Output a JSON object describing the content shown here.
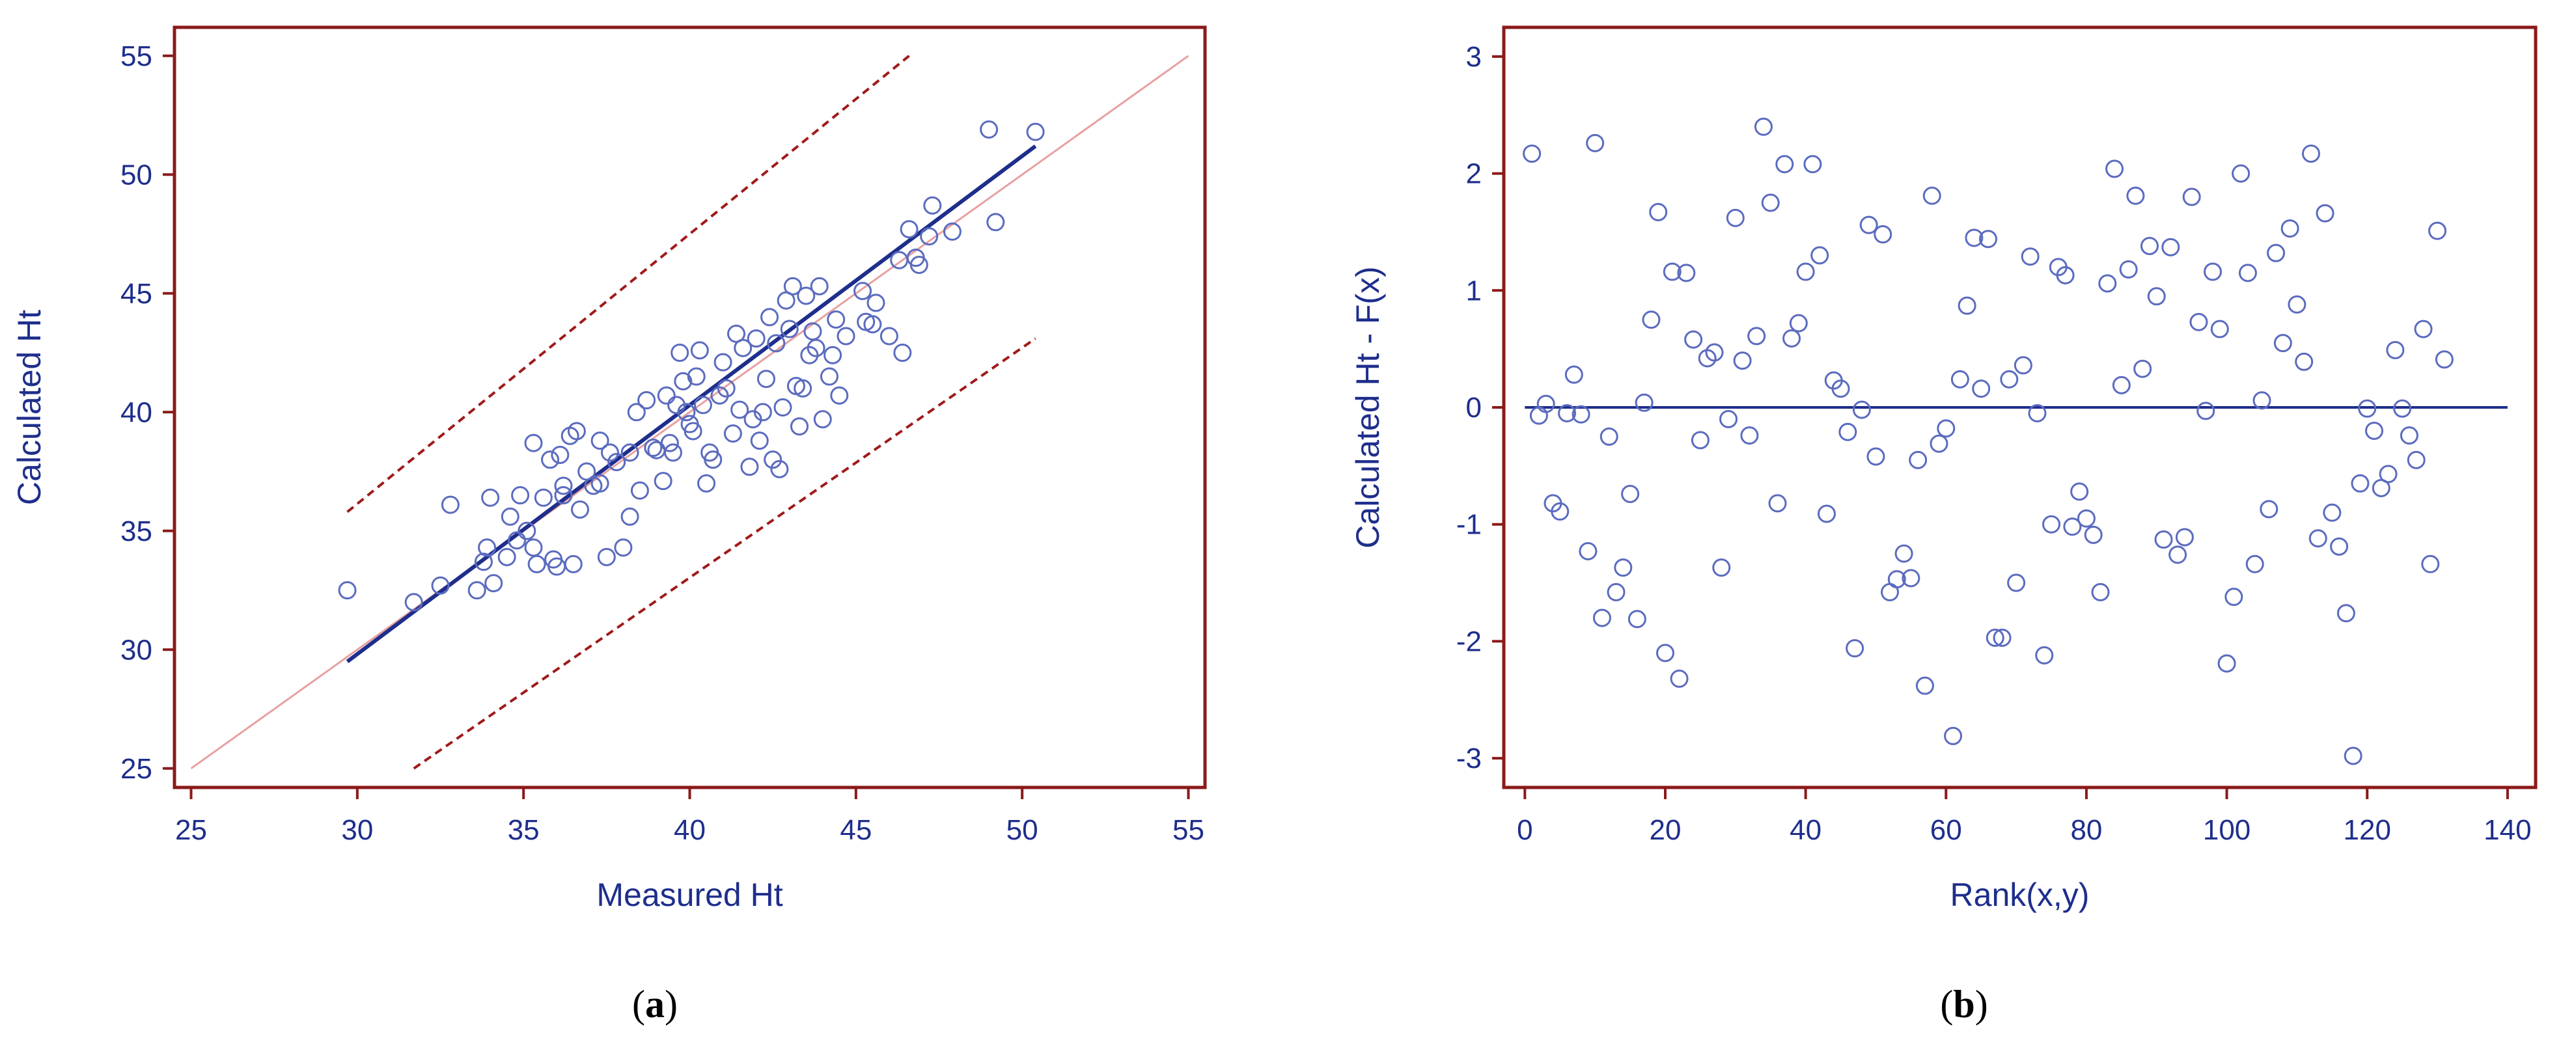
{
  "chart_data": [
    {
      "id": "a",
      "type": "scatter",
      "panel_label": "a",
      "title": "",
      "xlabel": "Measured Ht",
      "ylabel": "Calculated Ht",
      "xlim": [
        24.5,
        55.5
      ],
      "ylim": [
        24.2,
        56.2
      ],
      "xticks": [
        25,
        30,
        35,
        40,
        45,
        50,
        55
      ],
      "yticks": [
        25,
        30,
        35,
        40,
        45,
        50,
        55
      ],
      "colors": {
        "points": "#5b6bbf",
        "fit": "#1e2e8c",
        "identity": "#e8a0a0",
        "bounds": "#a01a1a",
        "frame": "#8b1a1a",
        "text": "#1e2e8c"
      },
      "lines": [
        {
          "role": "identity",
          "style": "solid",
          "x": [
            25,
            55
          ],
          "y": [
            25,
            55
          ]
        },
        {
          "role": "fit",
          "style": "solid",
          "x": [
            29.7,
            50.4
          ],
          "y": [
            29.5,
            51.2
          ]
        },
        {
          "role": "upper-bound",
          "style": "dashed",
          "x": [
            29.7,
            46.6
          ],
          "y": [
            35.8,
            55.0
          ]
        },
        {
          "role": "lower-bound",
          "style": "dashed",
          "x": [
            31.7,
            50.4
          ],
          "y": [
            25.0,
            43.1
          ]
        }
      ],
      "points": [
        [
          29.7,
          32.5
        ],
        [
          31.7,
          32.0
        ],
        [
          32.5,
          32.7
        ],
        [
          32.8,
          36.1
        ],
        [
          33.6,
          32.5
        ],
        [
          33.8,
          33.7
        ],
        [
          33.9,
          34.3
        ],
        [
          34.0,
          36.4
        ],
        [
          34.1,
          32.8
        ],
        [
          34.6,
          35.6
        ],
        [
          34.5,
          33.9
        ],
        [
          34.8,
          34.6
        ],
        [
          34.9,
          36.5
        ],
        [
          35.1,
          35.0
        ],
        [
          35.3,
          34.3
        ],
        [
          35.4,
          33.6
        ],
        [
          35.3,
          38.7
        ],
        [
          35.6,
          36.4
        ],
        [
          35.8,
          38.0
        ],
        [
          35.9,
          33.8
        ],
        [
          36.0,
          33.5
        ],
        [
          36.1,
          38.2
        ],
        [
          36.2,
          36.9
        ],
        [
          36.2,
          36.5
        ],
        [
          36.4,
          39.0
        ],
        [
          36.5,
          33.6
        ],
        [
          36.6,
          39.2
        ],
        [
          36.7,
          35.9
        ],
        [
          36.9,
          37.5
        ],
        [
          37.1,
          36.9
        ],
        [
          37.3,
          37.0
        ],
        [
          37.3,
          38.8
        ],
        [
          37.5,
          33.9
        ],
        [
          37.6,
          38.3
        ],
        [
          37.8,
          37.9
        ],
        [
          38.0,
          34.3
        ],
        [
          38.2,
          35.6
        ],
        [
          38.2,
          38.3
        ],
        [
          38.4,
          40.0
        ],
        [
          38.5,
          36.7
        ],
        [
          38.7,
          40.5
        ],
        [
          38.9,
          38.5
        ],
        [
          39.0,
          38.4
        ],
        [
          39.2,
          37.1
        ],
        [
          39.3,
          40.7
        ],
        [
          39.4,
          38.7
        ],
        [
          39.5,
          38.3
        ],
        [
          39.6,
          40.3
        ],
        [
          39.7,
          42.5
        ],
        [
          39.8,
          41.3
        ],
        [
          39.9,
          40.0
        ],
        [
          40.0,
          39.5
        ],
        [
          40.1,
          39.2
        ],
        [
          40.2,
          41.5
        ],
        [
          40.3,
          42.6
        ],
        [
          40.4,
          40.3
        ],
        [
          40.5,
          37.0
        ],
        [
          40.6,
          38.3
        ],
        [
          40.7,
          38.0
        ],
        [
          40.9,
          40.7
        ],
        [
          41.0,
          42.1
        ],
        [
          41.1,
          41.0
        ],
        [
          41.3,
          39.1
        ],
        [
          41.4,
          43.3
        ],
        [
          41.5,
          40.1
        ],
        [
          41.6,
          42.7
        ],
        [
          41.8,
          37.7
        ],
        [
          41.9,
          39.7
        ],
        [
          42.0,
          43.1
        ],
        [
          42.1,
          38.8
        ],
        [
          42.2,
          40.0
        ],
        [
          42.3,
          41.4
        ],
        [
          42.4,
          44.0
        ],
        [
          42.5,
          38.0
        ],
        [
          42.6,
          42.9
        ],
        [
          42.7,
          37.6
        ],
        [
          42.8,
          40.2
        ],
        [
          42.9,
          44.7
        ],
        [
          43.0,
          43.5
        ],
        [
          43.1,
          45.3
        ],
        [
          43.2,
          41.1
        ],
        [
          43.3,
          39.4
        ],
        [
          43.4,
          41.0
        ],
        [
          43.5,
          44.9
        ],
        [
          43.6,
          42.4
        ],
        [
          43.7,
          43.4
        ],
        [
          43.8,
          42.7
        ],
        [
          43.9,
          45.3
        ],
        [
          44.0,
          39.7
        ],
        [
          44.2,
          41.5
        ],
        [
          44.3,
          42.4
        ],
        [
          44.4,
          43.9
        ],
        [
          44.5,
          40.7
        ],
        [
          44.7,
          43.2
        ],
        [
          45.2,
          45.1
        ],
        [
          45.3,
          43.8
        ],
        [
          45.5,
          43.7
        ],
        [
          45.6,
          44.6
        ],
        [
          46.0,
          43.2
        ],
        [
          46.4,
          42.5
        ],
        [
          46.3,
          46.4
        ],
        [
          46.6,
          47.7
        ],
        [
          46.8,
          46.5
        ],
        [
          46.9,
          46.2
        ],
        [
          47.2,
          47.4
        ],
        [
          47.3,
          48.7
        ],
        [
          47.9,
          47.6
        ],
        [
          49.0,
          51.9
        ],
        [
          49.2,
          48.0
        ],
        [
          50.4,
          51.8
        ]
      ]
    },
    {
      "id": "b",
      "type": "scatter",
      "panel_label": "b",
      "title": "",
      "xlabel": "Rank(x,y)",
      "ylabel": "Calculated Ht - F(x)",
      "xlim": [
        -3,
        144
      ],
      "ylim": [
        -3.25,
        3.25
      ],
      "xticks": [
        0,
        20,
        40,
        60,
        80,
        100,
        120,
        140
      ],
      "yticks": [
        -3,
        -2,
        -1,
        0,
        1,
        2,
        3
      ],
      "colors": {
        "points": "#5b6bbf",
        "zero_line": "#1e2e8c",
        "frame": "#8b1a1a",
        "text": "#1e2e8c"
      },
      "lines": [
        {
          "role": "zero",
          "style": "solid",
          "x": [
            0,
            140
          ],
          "y": [
            0,
            0
          ]
        }
      ],
      "points": [
        [
          1,
          2.17
        ],
        [
          2,
          -0.07
        ],
        [
          3,
          0.03
        ],
        [
          4,
          -0.82
        ],
        [
          5,
          -0.89
        ],
        [
          6,
          -0.05
        ],
        [
          7,
          0.28
        ],
        [
          8,
          -0.06
        ],
        [
          9,
          -1.23
        ],
        [
          10,
          2.26
        ],
        [
          11,
          -1.8
        ],
        [
          12,
          -0.25
        ],
        [
          13,
          -1.58
        ],
        [
          14,
          -1.37
        ],
        [
          15,
          -0.74
        ],
        [
          16,
          -1.81
        ],
        [
          17,
          0.04
        ],
        [
          18,
          0.75
        ],
        [
          19,
          1.67
        ],
        [
          20,
          -2.1
        ],
        [
          21,
          1.16
        ],
        [
          22,
          -2.32
        ],
        [
          23,
          1.15
        ],
        [
          24,
          0.58
        ],
        [
          25,
          -0.28
        ],
        [
          26,
          0.42
        ],
        [
          27,
          0.47
        ],
        [
          28,
          -1.37
        ],
        [
          29,
          -0.1
        ],
        [
          30,
          1.62
        ],
        [
          31,
          0.4
        ],
        [
          32,
          -0.24
        ],
        [
          33,
          0.61
        ],
        [
          34,
          2.4
        ],
        [
          35,
          1.75
        ],
        [
          36,
          -0.82
        ],
        [
          37,
          2.08
        ],
        [
          38,
          0.59
        ],
        [
          39,
          0.72
        ],
        [
          40,
          1.16
        ],
        [
          41,
          2.08
        ],
        [
          42,
          1.3
        ],
        [
          43,
          -0.91
        ],
        [
          44,
          0.23
        ],
        [
          45,
          0.16
        ],
        [
          46,
          -0.21
        ],
        [
          47,
          -2.06
        ],
        [
          48,
          -0.02
        ],
        [
          49,
          1.56
        ],
        [
          50,
          -0.42
        ],
        [
          51,
          1.48
        ],
        [
          52,
          -1.58
        ],
        [
          53,
          -1.47
        ],
        [
          54,
          -1.25
        ],
        [
          55,
          -1.46
        ],
        [
          56,
          -0.45
        ],
        [
          57,
          -2.38
        ],
        [
          58,
          1.81
        ],
        [
          59,
          -0.31
        ],
        [
          60,
          -0.18
        ],
        [
          61,
          -2.81
        ],
        [
          62,
          0.24
        ],
        [
          63,
          0.87
        ],
        [
          64,
          1.45
        ],
        [
          65,
          0.16
        ],
        [
          66,
          1.44
        ],
        [
          67,
          -1.97
        ],
        [
          68,
          -1.97
        ],
        [
          69,
          0.24
        ],
        [
          70,
          -1.5
        ],
        [
          71,
          0.36
        ],
        [
          72,
          1.29
        ],
        [
          73,
          -0.05
        ],
        [
          74,
          -2.12
        ],
        [
          75,
          -1.0
        ],
        [
          76,
          1.2
        ],
        [
          77,
          1.13
        ],
        [
          78,
          -1.02
        ],
        [
          79,
          -0.72
        ],
        [
          80,
          -0.95
        ],
        [
          81,
          -1.09
        ],
        [
          82,
          -1.58
        ],
        [
          83,
          1.06
        ],
        [
          84,
          2.04
        ],
        [
          85,
          0.19
        ],
        [
          86,
          1.18
        ],
        [
          87,
          1.81
        ],
        [
          88,
          0.33
        ],
        [
          89,
          1.38
        ],
        [
          90,
          0.95
        ],
        [
          91,
          -1.13
        ],
        [
          92,
          1.37
        ],
        [
          93,
          -1.26
        ],
        [
          94,
          -1.11
        ],
        [
          95,
          1.8
        ],
        [
          96,
          0.73
        ],
        [
          97,
          -0.03
        ],
        [
          98,
          1.16
        ],
        [
          99,
          0.67
        ],
        [
          100,
          -2.19
        ],
        [
          101,
          -1.62
        ],
        [
          102,
          2.0
        ],
        [
          103,
          1.15
        ],
        [
          104,
          -1.34
        ],
        [
          105,
          0.06
        ],
        [
          106,
          -0.87
        ],
        [
          107,
          1.32
        ],
        [
          108,
          0.55
        ],
        [
          109,
          1.53
        ],
        [
          110,
          0.88
        ],
        [
          111,
          0.39
        ],
        [
          112,
          2.17
        ],
        [
          113,
          -1.12
        ],
        [
          114,
          1.66
        ],
        [
          115,
          -0.9
        ],
        [
          116,
          -1.19
        ],
        [
          117,
          -1.76
        ],
        [
          118,
          -2.98
        ],
        [
          119,
          -0.65
        ],
        [
          120,
          -0.01
        ],
        [
          121,
          -0.2
        ],
        [
          122,
          -0.69
        ],
        [
          123,
          -0.57
        ],
        [
          124,
          0.49
        ],
        [
          125,
          -0.01
        ],
        [
          126,
          -0.24
        ],
        [
          127,
          -0.45
        ],
        [
          128,
          0.67
        ],
        [
          129,
          -1.34
        ],
        [
          130,
          1.51
        ],
        [
          131,
          0.41
        ]
      ]
    }
  ]
}
